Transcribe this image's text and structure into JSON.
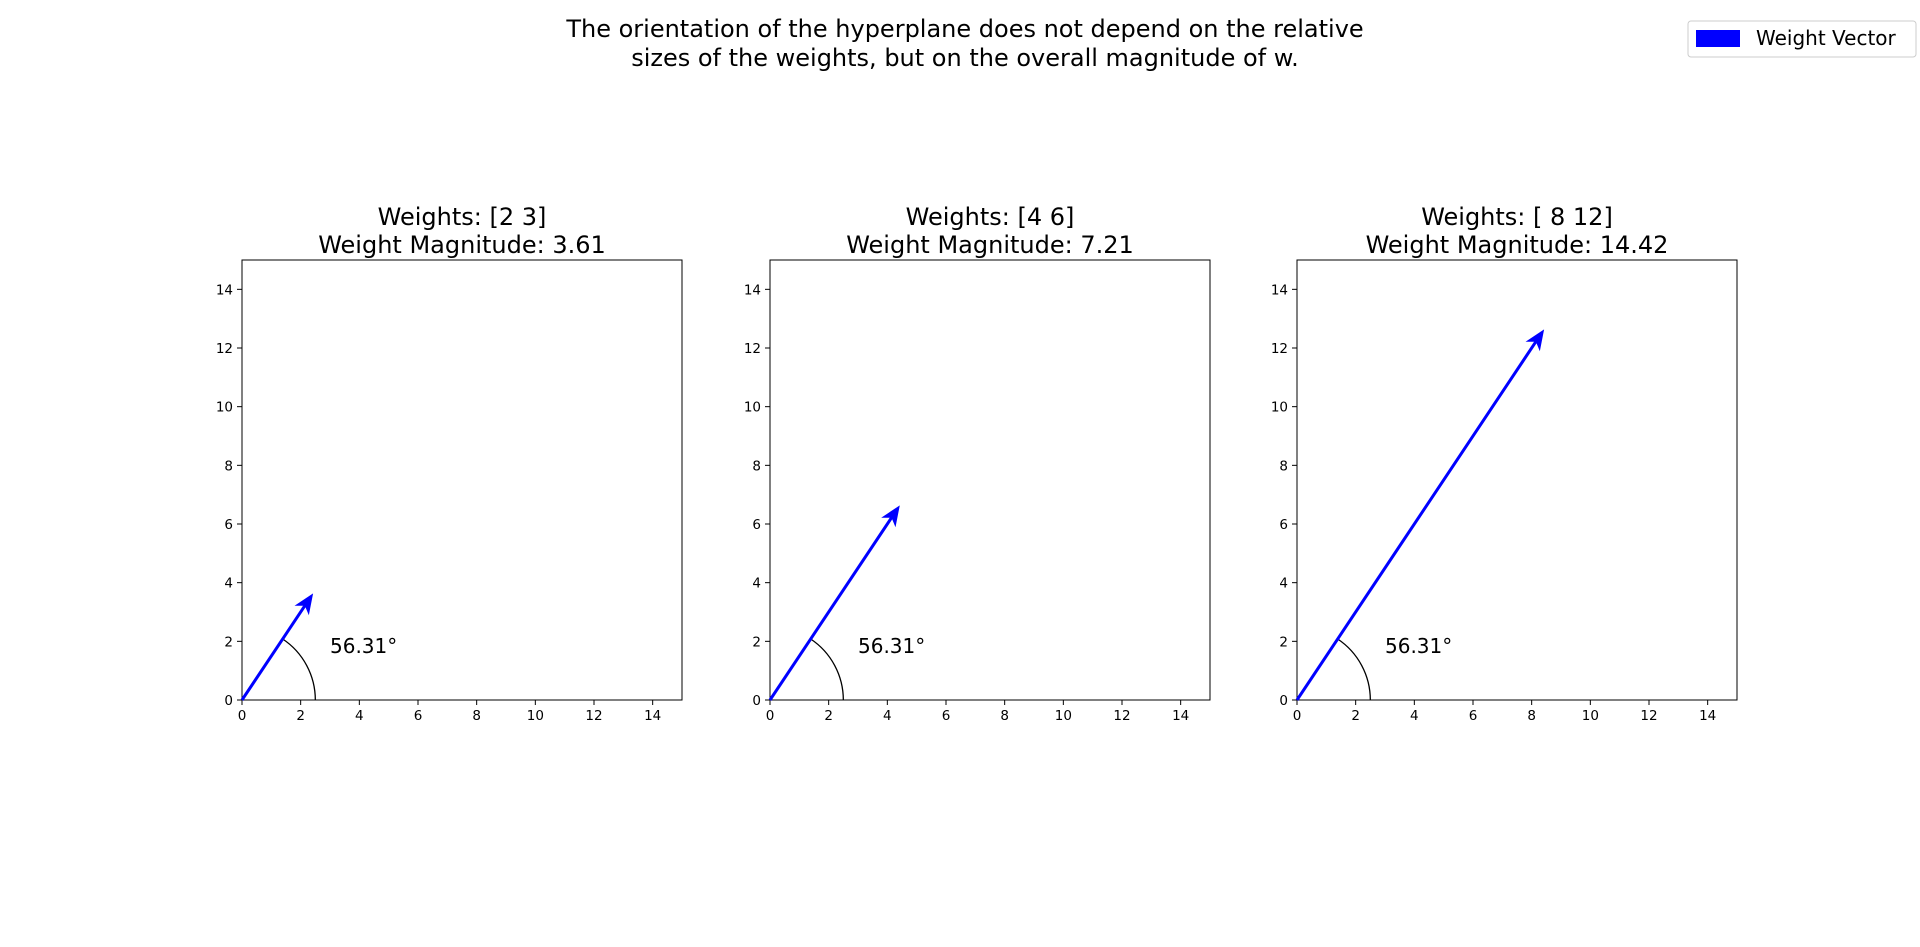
{
  "suptitle": {
    "line1": "The orientation of the hyperplane does not depend on the relative",
    "line2": "sizes of the weights, but on the overall magnitude of w."
  },
  "legend": {
    "label": "Weight Vector",
    "color": "#0000ff",
    "placement": "top-right"
  },
  "chart_data": [
    {
      "type": "quiver",
      "title_line1": "Weights: [2 3]",
      "title_line2": "Weight Magnitude: 3.61",
      "vector": [
        2,
        3
      ],
      "arrow_scale": 1.2,
      "angle_label": "56.31°",
      "angle_label_pos": [
        3,
        1.6
      ],
      "arc_radius": 2.5,
      "xlim": [
        0,
        15
      ],
      "ylim": [
        0,
        15
      ],
      "xticks": [
        0,
        2,
        4,
        6,
        8,
        10,
        12,
        14
      ],
      "yticks": [
        0,
        2,
        4,
        6,
        8,
        10,
        12,
        14
      ],
      "grid": false
    },
    {
      "type": "quiver",
      "title_line1": "Weights: [4 6]",
      "title_line2": "Weight Magnitude: 7.21",
      "vector": [
        4,
        6
      ],
      "arrow_scale": 1.1,
      "angle_label": "56.31°",
      "angle_label_pos": [
        3,
        1.6
      ],
      "arc_radius": 2.5,
      "xlim": [
        0,
        15
      ],
      "ylim": [
        0,
        15
      ],
      "xticks": [
        0,
        2,
        4,
        6,
        8,
        10,
        12,
        14
      ],
      "yticks": [
        0,
        2,
        4,
        6,
        8,
        10,
        12,
        14
      ],
      "grid": false
    },
    {
      "type": "quiver",
      "title_line1": "Weights: [ 8 12]",
      "title_line2": "Weight Magnitude: 14.42",
      "vector": [
        8,
        12
      ],
      "arrow_scale": 1.05,
      "angle_label": "56.31°",
      "angle_label_pos": [
        3,
        1.6
      ],
      "arc_radius": 2.5,
      "xlim": [
        0,
        15
      ],
      "ylim": [
        0,
        15
      ],
      "xticks": [
        0,
        2,
        4,
        6,
        8,
        10,
        12,
        14
      ],
      "yticks": [
        0,
        2,
        4,
        6,
        8,
        10,
        12,
        14
      ],
      "grid": false
    }
  ]
}
